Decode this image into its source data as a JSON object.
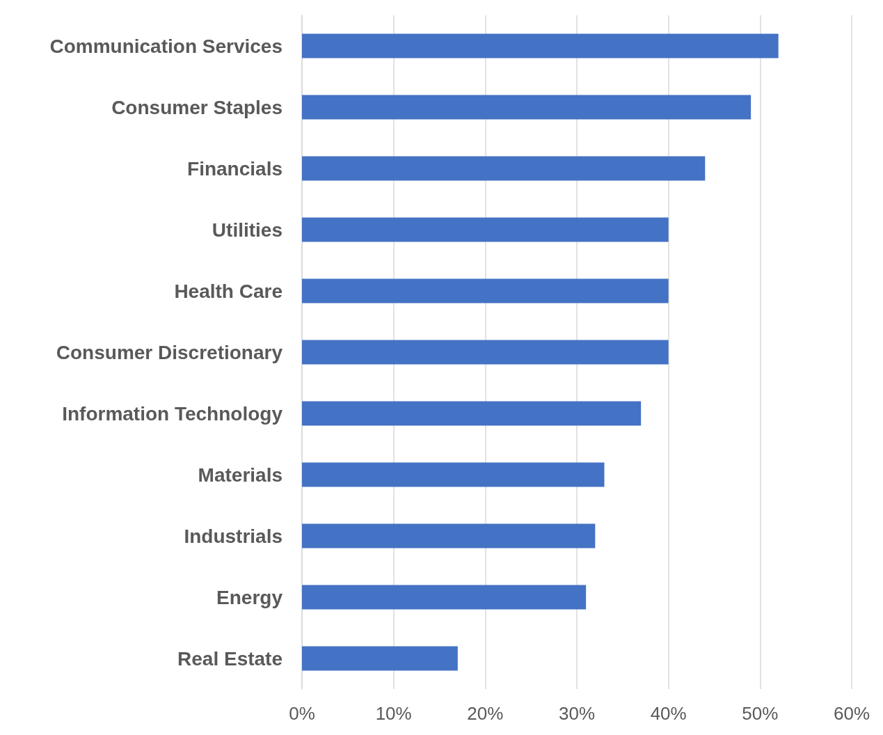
{
  "chart_data": {
    "type": "bar",
    "orientation": "horizontal",
    "categories": [
      "Communication Services",
      "Consumer Staples",
      "Financials",
      "Utilities",
      "Health Care",
      "Consumer Discretionary",
      "Information Technology",
      "Materials",
      "Industrials",
      "Energy",
      "Real Estate"
    ],
    "values": [
      52,
      49,
      44,
      40,
      40,
      40,
      37,
      33,
      32,
      31,
      17
    ],
    "color": "#4472c4",
    "xlim": [
      0,
      60
    ],
    "xticks": [
      {
        "value": 0,
        "label": "0%"
      },
      {
        "value": 10,
        "label": "10%"
      },
      {
        "value": 20,
        "label": "20%"
      },
      {
        "value": 30,
        "label": "30%"
      },
      {
        "value": 40,
        "label": "40%"
      },
      {
        "value": 50,
        "label": "50%"
      },
      {
        "value": 60,
        "label": "60%"
      }
    ],
    "grid": "x"
  }
}
